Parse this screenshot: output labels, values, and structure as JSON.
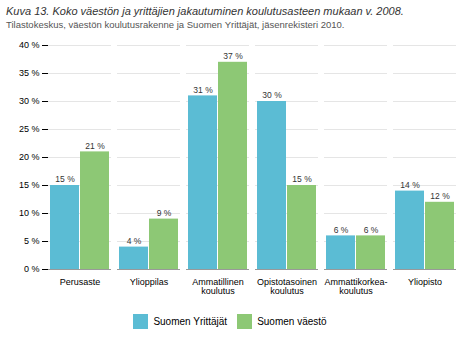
{
  "chart_data": {
    "type": "bar",
    "title": "Kuva 13. Koko väestön ja yrittäjien jakautuminen koulutusasteen mukaan v. 2008.",
    "subtitle": "Tilastokeskus, väestön koulutusrakenne ja Suomen Yrittäjät, jäsenrekisteri 2010.",
    "categories": [
      "Perusaste",
      "Ylioppilas",
      "Ammatillinen\nkoulutus",
      "Opistotasoinen\nkoulutus",
      "Ammattikorkea-\nkoulutus",
      "Yliopisto"
    ],
    "series": [
      {
        "name": "Suomen Yrittäjät",
        "color": "#5bbcd4",
        "values": [
          15,
          4,
          31,
          30,
          6,
          14
        ],
        "value_labels": [
          "15 %",
          "4 %",
          "31 %",
          "30 %",
          "6 %",
          "14 %"
        ]
      },
      {
        "name": "Suomen väestö",
        "color": "#8dc875",
        "values": [
          21,
          9,
          37,
          15,
          6,
          12
        ],
        "value_labels": [
          "21 %",
          "9 %",
          "37 %",
          "15 %",
          "6 %",
          "12 %"
        ]
      }
    ],
    "ylim": [
      0,
      40
    ],
    "yticks": [
      {
        "value": 0,
        "label": "0 %"
      },
      {
        "value": 5,
        "label": "5 %"
      },
      {
        "value": 10,
        "label": "10 %"
      },
      {
        "value": 15,
        "label": "15 %"
      },
      {
        "value": 20,
        "label": "20 %"
      },
      {
        "value": 25,
        "label": "25 %"
      },
      {
        "value": 30,
        "label": "30 %"
      },
      {
        "value": 35,
        "label": "35 %"
      },
      {
        "value": 40,
        "label": "40 %"
      }
    ],
    "grid": true,
    "data_labels": true,
    "legend": "bottom"
  }
}
